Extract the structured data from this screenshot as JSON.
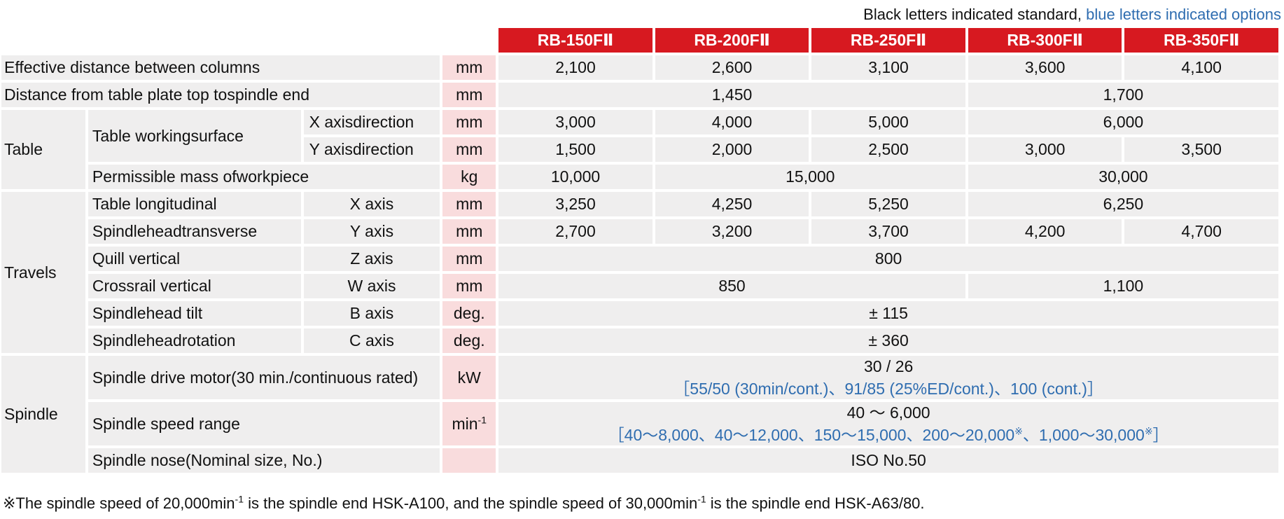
{
  "legend": {
    "standard": "Black letters indicated standard,",
    "options": "blue letters indicated options"
  },
  "models": [
    "RB-150FⅡ",
    "RB-200FⅡ",
    "RB-250FⅡ",
    "RB-300FⅡ",
    "RB-350FⅡ"
  ],
  "rows": {
    "columns_distance": {
      "label": "Effective distance between columns",
      "unit": "mm",
      "values": [
        "2,100",
        "2,600",
        "3,100",
        "3,600",
        "4,100"
      ]
    },
    "table_to_spindle": {
      "label": "Distance from table plate top tospindle end",
      "unit": "mm",
      "values": [
        "1,450",
        "1,700"
      ]
    },
    "table_category": "Table",
    "working_surface": {
      "label": "Table workingsurface"
    },
    "x_dir": {
      "label": "X axisdirection",
      "unit": "mm",
      "values": [
        "3,000",
        "4,000",
        "5,000",
        "6,000"
      ]
    },
    "y_dir": {
      "label": "Y axisdirection",
      "unit": "mm",
      "values": [
        "1,500",
        "2,000",
        "2,500",
        "3,000",
        "3,500"
      ]
    },
    "mass": {
      "label": "Permissible mass ofworkpiece",
      "unit": "kg",
      "values": [
        "10,000",
        "15,000",
        "30,000"
      ]
    },
    "travels_category": "Travels",
    "table_long": {
      "label": "Table longitudinal",
      "axis": "X axis",
      "unit": "mm",
      "values": [
        "3,250",
        "4,250",
        "5,250",
        "6,250"
      ]
    },
    "head_trans": {
      "label": "Spindleheadtransverse",
      "axis": "Y axis",
      "unit": "mm",
      "values": [
        "2,700",
        "3,200",
        "3,700",
        "4,200",
        "4,700"
      ]
    },
    "quill": {
      "label": "Quill vertical",
      "axis": "Z axis",
      "unit": "mm",
      "values": [
        "800"
      ]
    },
    "crossrail": {
      "label": "Crossrail vertical",
      "axis": "W axis",
      "unit": "mm",
      "values": [
        "850",
        "1,100"
      ]
    },
    "tilt": {
      "label": "Spindlehead tilt",
      "axis": "B axis",
      "unit": "deg.",
      "values": [
        "± 115"
      ]
    },
    "rotation": {
      "label": "Spindleheadrotation",
      "axis": "C axis",
      "unit": "deg.",
      "values": [
        "± 360"
      ]
    },
    "spindle_category": "Spindle",
    "motor": {
      "label": "Spindle drive motor(30 min./continuous rated)",
      "unit": "kW",
      "standard": "30 / 26",
      "options": "［55/50 (30min/cont.)、91/85 (25%ED/cont.)、100 (cont.)］"
    },
    "speed": {
      "label": "Spindle speed range",
      "unit_base": "min",
      "unit_exp": "-1",
      "standard": "40 ～ 6,000",
      "opt_a": "［40～8,000、40～12,000、150～15,000、200～20,000",
      "opt_mark1": "※",
      "opt_b": "、1,000～30,000",
      "opt_mark2": "※",
      "opt_c": "］"
    },
    "nose": {
      "label": "Spindle nose(Nominal size, No.)",
      "unit": "",
      "values": [
        "ISO No.50"
      ]
    }
  },
  "note": {
    "part1": "※The spindle speed of 20,000min",
    "exp1": "-1",
    "part2": " is the spindle end HSK-A100, and the spindle speed of 30,000min",
    "exp2": "-1",
    "part3": " is the spindle end HSK-A63/80."
  }
}
